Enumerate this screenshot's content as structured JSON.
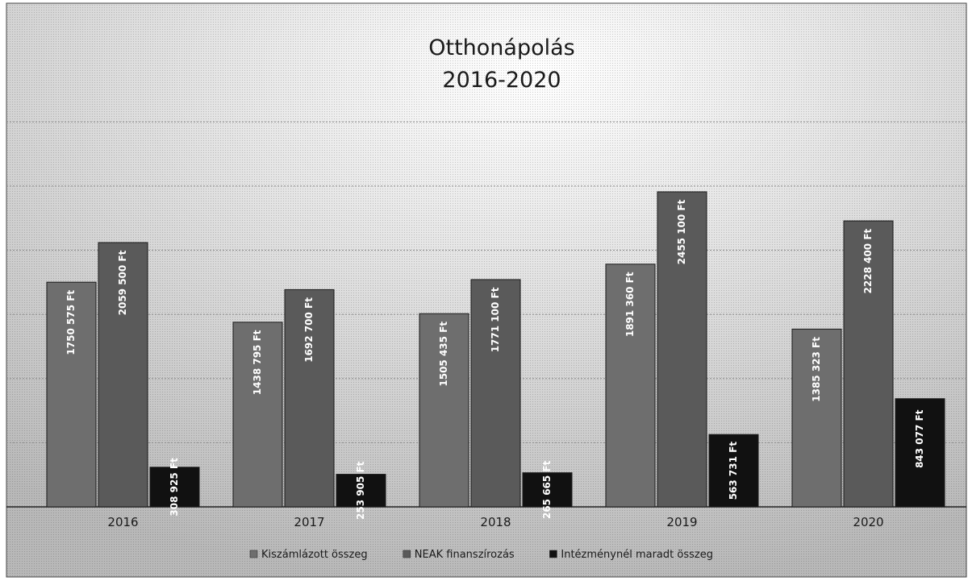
{
  "chart_data": {
    "type": "bar",
    "title_line1": "Otthonápolás",
    "title_line2": "2016-2020",
    "categories": [
      "2016",
      "2017",
      "2018",
      "2019",
      "2020"
    ],
    "series": [
      {
        "name": "Kiszámlázott összeg",
        "color": "#6e6e6e",
        "values": [
          1750575,
          1438795,
          1505435,
          1891360,
          1385323
        ],
        "labels": [
          "1750 575 Ft",
          "1438 795 Ft",
          "1505 435 Ft",
          "1891 360 Ft",
          "1385 323 Ft"
        ]
      },
      {
        "name": "NEAK finanszírozás",
        "color": "#5a5a5a",
        "values": [
          2059500,
          1692700,
          1771100,
          2455100,
          2228400
        ],
        "labels": [
          "2059 500 Ft",
          "1692 700 Ft",
          "1771 100 Ft",
          "2455 100 Ft",
          "2228 400 Ft"
        ]
      },
      {
        "name": "Intézménynél maradt összeg",
        "color": "#111111",
        "values": [
          308925,
          253905,
          265665,
          563731,
          843077
        ],
        "labels": [
          "308 925 Ft",
          "253 905 Ft",
          "265 665 Ft",
          "563 731 Ft",
          "843 077 Ft"
        ]
      }
    ],
    "ylim": [
      0,
      3000000
    ],
    "grid": true,
    "legend_position": "bottom"
  }
}
